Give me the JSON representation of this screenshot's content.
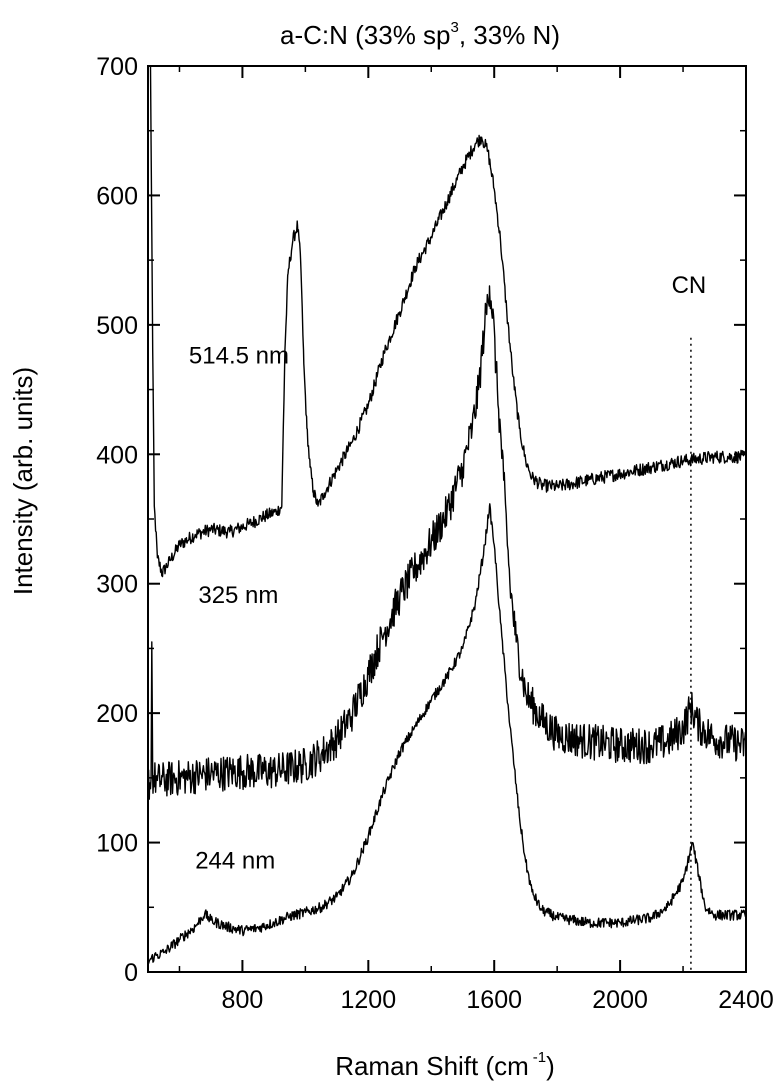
{
  "chart_data": {
    "type": "line",
    "title": {
      "main": "a-C:N (33% sp",
      "sup": "3",
      "rest": ", 33% N)"
    },
    "xlabel": {
      "main": "Raman Shift (cm",
      "sup": "-1",
      "rest": ")"
    },
    "ylabel": "Intensity (arb. units)",
    "xlim": [
      500,
      2400
    ],
    "ylim": [
      0,
      700
    ],
    "xticks": [
      800,
      1200,
      1600,
      2000,
      2400
    ],
    "xtick_labels": [
      "800",
      "1200",
      "1600",
      "2000",
      "2400"
    ],
    "yticks": [
      0,
      100,
      200,
      300,
      400,
      500,
      600,
      700
    ],
    "ytick_labels": [
      "0",
      "100",
      "200",
      "300",
      "400",
      "500",
      "600",
      "700"
    ],
    "grid": false,
    "annotations": [
      {
        "text": "CN",
        "x": 2225,
        "y": 520,
        "dotted_line_x": 2225,
        "dotted_line_from": 0,
        "dotted_line_to": 490
      }
    ],
    "series": [
      {
        "name": "514.5 nm",
        "label_at": {
          "x": 630,
          "y": 470
        },
        "noise": 5,
        "points": [
          [
            508,
            700
          ],
          [
            515,
            480
          ],
          [
            520,
            360
          ],
          [
            530,
            320
          ],
          [
            545,
            308
          ],
          [
            570,
            318
          ],
          [
            600,
            330
          ],
          [
            650,
            338
          ],
          [
            700,
            342
          ],
          [
            760,
            340
          ],
          [
            820,
            346
          ],
          [
            870,
            352
          ],
          [
            910,
            356
          ],
          [
            925,
            360
          ],
          [
            935,
            480
          ],
          [
            945,
            540
          ],
          [
            960,
            565
          ],
          [
            975,
            577
          ],
          [
            985,
            550
          ],
          [
            995,
            470
          ],
          [
            1005,
            420
          ],
          [
            1015,
            390
          ],
          [
            1025,
            372
          ],
          [
            1040,
            360
          ],
          [
            1060,
            370
          ],
          [
            1100,
            388
          ],
          [
            1150,
            410
          ],
          [
            1200,
            438
          ],
          [
            1250,
            478
          ],
          [
            1300,
            510
          ],
          [
            1350,
            545
          ],
          [
            1400,
            568
          ],
          [
            1450,
            595
          ],
          [
            1500,
            622
          ],
          [
            1540,
            640
          ],
          [
            1560,
            645
          ],
          [
            1580,
            634
          ],
          [
            1600,
            605
          ],
          [
            1620,
            565
          ],
          [
            1640,
            510
          ],
          [
            1660,
            460
          ],
          [
            1680,
            420
          ],
          [
            1700,
            395
          ],
          [
            1720,
            382
          ],
          [
            1750,
            376
          ],
          [
            1800,
            375
          ],
          [
            1900,
            380
          ],
          [
            2000,
            385
          ],
          [
            2100,
            390
          ],
          [
            2200,
            395
          ],
          [
            2300,
            398
          ],
          [
            2400,
            398
          ]
        ]
      },
      {
        "name": "325 nm",
        "label_at": {
          "x": 660,
          "y": 285
        },
        "noise": 14,
        "points": [
          [
            500,
            150
          ],
          [
            505,
            145
          ],
          [
            510,
            150
          ],
          [
            512,
            255
          ],
          [
            515,
            150
          ],
          [
            530,
            148
          ],
          [
            600,
            150
          ],
          [
            700,
            153
          ],
          [
            800,
            155
          ],
          [
            900,
            155
          ],
          [
            1000,
            160
          ],
          [
            1050,
            168
          ],
          [
            1100,
            180
          ],
          [
            1150,
            200
          ],
          [
            1200,
            230
          ],
          [
            1250,
            262
          ],
          [
            1300,
            290
          ],
          [
            1350,
            312
          ],
          [
            1400,
            332
          ],
          [
            1450,
            355
          ],
          [
            1500,
            390
          ],
          [
            1530,
            420
          ],
          [
            1550,
            450
          ],
          [
            1570,
            500
          ],
          [
            1585,
            530
          ],
          [
            1595,
            510
          ],
          [
            1610,
            450
          ],
          [
            1630,
            380
          ],
          [
            1650,
            300
          ],
          [
            1670,
            255
          ],
          [
            1700,
            215
          ],
          [
            1750,
            195
          ],
          [
            1800,
            183
          ],
          [
            1900,
            178
          ],
          [
            2000,
            175
          ],
          [
            2100,
            175
          ],
          [
            2150,
            178
          ],
          [
            2200,
            188
          ],
          [
            2225,
            205
          ],
          [
            2250,
            190
          ],
          [
            2300,
            180
          ],
          [
            2400,
            175
          ]
        ]
      },
      {
        "name": "244 nm",
        "label_at": {
          "x": 650,
          "y": 80
        },
        "noise": 4,
        "points": [
          [
            500,
            8
          ],
          [
            520,
            12
          ],
          [
            550,
            15
          ],
          [
            600,
            25
          ],
          [
            650,
            35
          ],
          [
            680,
            45
          ],
          [
            700,
            40
          ],
          [
            750,
            35
          ],
          [
            800,
            32
          ],
          [
            850,
            34
          ],
          [
            900,
            38
          ],
          [
            950,
            43
          ],
          [
            1000,
            46
          ],
          [
            1050,
            50
          ],
          [
            1100,
            58
          ],
          [
            1150,
            75
          ],
          [
            1200,
            105
          ],
          [
            1250,
            140
          ],
          [
            1300,
            170
          ],
          [
            1350,
            190
          ],
          [
            1400,
            210
          ],
          [
            1450,
            228
          ],
          [
            1500,
            250
          ],
          [
            1540,
            285
          ],
          [
            1570,
            330
          ],
          [
            1585,
            360
          ],
          [
            1600,
            330
          ],
          [
            1620,
            270
          ],
          [
            1650,
            190
          ],
          [
            1680,
            120
          ],
          [
            1700,
            85
          ],
          [
            1720,
            62
          ],
          [
            1750,
            48
          ],
          [
            1800,
            42
          ],
          [
            1900,
            38
          ],
          [
            2000,
            38
          ],
          [
            2100,
            42
          ],
          [
            2150,
            50
          ],
          [
            2200,
            70
          ],
          [
            2230,
            100
          ],
          [
            2250,
            75
          ],
          [
            2270,
            50
          ],
          [
            2300,
            44
          ],
          [
            2400,
            44
          ]
        ]
      }
    ]
  }
}
